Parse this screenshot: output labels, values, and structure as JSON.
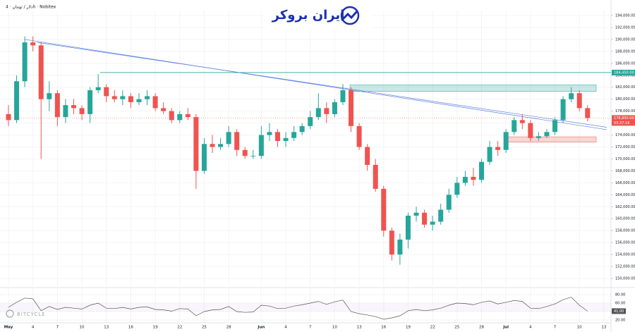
{
  "header": {
    "symbol": "دلار / تومان · 4h · Nobitex",
    "logo": "ایران بروکر",
    "watermark": "BITCYCLE"
  },
  "chart_data": [
    {
      "type": "candlestick",
      "categories": [
        "May",
        null,
        null,
        "4",
        null,
        null,
        "7",
        null,
        null,
        "10",
        null,
        null,
        "13",
        null,
        null,
        "16",
        null,
        null,
        "19",
        null,
        null,
        "22",
        null,
        null,
        "25",
        null,
        null,
        "28",
        null,
        null,
        null,
        "Jun",
        null,
        null,
        "4",
        null,
        null,
        "7",
        null,
        null,
        "10",
        null,
        null,
        "13",
        null,
        null,
        "16",
        null,
        null,
        "19",
        null,
        null,
        "22",
        null,
        null,
        "25",
        null,
        null,
        "28",
        null,
        null,
        "Jul",
        null,
        null,
        "4",
        null,
        null,
        "7",
        null,
        null,
        "10",
        null,
        null,
        "13"
      ],
      "open": [
        177500,
        176500,
        183000,
        189500,
        189000,
        180000,
        181000,
        177000,
        179000,
        178500,
        177500,
        181500,
        182000,
        180500,
        180000,
        180500,
        179500,
        180000,
        180500,
        178500,
        178000,
        176500,
        177500,
        177000,
        168000,
        172500,
        172000,
        172500,
        174500,
        171500,
        170500,
        170500,
        174000,
        174500,
        173000,
        173500,
        174500,
        175500,
        177000,
        178500,
        177500,
        179500,
        181500,
        175500,
        172000,
        169000,
        165000,
        158000,
        154000,
        156500,
        160500,
        161000,
        159000,
        159500,
        161500,
        164000,
        166000,
        167000,
        166500,
        169500,
        172000,
        171500,
        174500,
        176500,
        176000,
        173500,
        173800,
        174500,
        176500,
        180000,
        181000,
        178500,
        null,
        null
      ],
      "high": [
        179000,
        184000,
        190500,
        190500,
        189500,
        183000,
        181500,
        180000,
        180000,
        179000,
        182000,
        184200,
        182500,
        181500,
        181500,
        181000,
        181000,
        181500,
        181000,
        179500,
        178500,
        178000,
        178500,
        177500,
        173500,
        174000,
        173500,
        175500,
        175000,
        172000,
        171500,
        175500,
        176000,
        175000,
        174500,
        175500,
        176000,
        178000,
        181000,
        179500,
        180000,
        182500,
        182000,
        176000,
        172500,
        170000,
        165500,
        158500,
        157500,
        161000,
        162000,
        161500,
        160500,
        162500,
        165000,
        167000,
        168000,
        168500,
        170000,
        173000,
        173000,
        175000,
        177000,
        177500,
        176500,
        174500,
        175000,
        177000,
        180500,
        182000,
        181500,
        179000,
        null,
        null
      ],
      "low": [
        175500,
        176000,
        182000,
        188000,
        170000,
        178000,
        175500,
        176000,
        177500,
        176500,
        176000,
        181000,
        179500,
        179500,
        179000,
        178500,
        179000,
        179000,
        178000,
        177500,
        176000,
        176000,
        176500,
        165000,
        167500,
        171000,
        171500,
        172000,
        170500,
        170000,
        170000,
        170000,
        173000,
        172000,
        172000,
        173000,
        174000,
        175000,
        176500,
        176000,
        177000,
        179000,
        174500,
        171500,
        168000,
        164500,
        157000,
        153000,
        152300,
        155000,
        159500,
        158500,
        158000,
        159000,
        161000,
        163500,
        165500,
        165500,
        166000,
        169000,
        170500,
        171000,
        174000,
        175000,
        173000,
        173000,
        173500,
        174000,
        176000,
        179500,
        178000,
        176300,
        null,
        null
      ],
      "close": [
        176500,
        183000,
        189500,
        189000,
        180000,
        181000,
        177000,
        179000,
        178500,
        177500,
        181500,
        182000,
        180500,
        180000,
        180500,
        179500,
        180000,
        180500,
        178500,
        178000,
        176500,
        177500,
        177000,
        168000,
        172500,
        172000,
        172500,
        174500,
        171500,
        170500,
        170500,
        174000,
        174500,
        173000,
        173500,
        174500,
        175500,
        177000,
        178500,
        177500,
        179500,
        181500,
        175500,
        172000,
        169000,
        165000,
        158000,
        154000,
        156500,
        160500,
        161000,
        159000,
        159500,
        161500,
        164000,
        166000,
        167000,
        166500,
        169500,
        172000,
        171500,
        174500,
        176500,
        176000,
        173500,
        173800,
        174500,
        176500,
        180000,
        181000,
        178500,
        176850,
        null,
        null
      ],
      "up_color": "#26a69a",
      "down_color": "#ef5350",
      "ylim": [
        150000,
        194000
      ],
      "yticks": [
        {
          "value": 150000,
          "label": "150,000.00"
        },
        {
          "value": 152000,
          "label": "152,000.00"
        },
        {
          "value": 154000,
          "label": "154,000.00"
        },
        {
          "value": 156000,
          "label": "156,000.00"
        },
        {
          "value": 158000,
          "label": "158,000.00"
        },
        {
          "value": 160000,
          "label": "160,000.00"
        },
        {
          "value": 162000,
          "label": "162,000.00"
        },
        {
          "value": 164000,
          "label": "164,000.00"
        },
        {
          "value": 166000,
          "label": "166,000.00"
        },
        {
          "value": 168000,
          "label": "168,000.00"
        },
        {
          "value": 170000,
          "label": "170,000.00"
        },
        {
          "value": 172000,
          "label": "172,000.00"
        },
        {
          "value": 174000,
          "label": "174,000.00"
        },
        {
          "value": 176000,
          "label": "176,000.00"
        },
        {
          "value": 178000,
          "label": "178,000.00"
        },
        {
          "value": 180000,
          "label": "180,000.00"
        },
        {
          "value": 182000,
          "label": "182,000.00"
        },
        {
          "value": 184000,
          "label": "184,000.00"
        },
        {
          "value": 186000,
          "label": "186,000.00"
        },
        {
          "value": 188000,
          "label": "188,000.00"
        },
        {
          "value": 190000,
          "label": "190,000.00"
        },
        {
          "value": 192000,
          "label": "192,000.00"
        },
        {
          "value": 194000,
          "label": "194,000.00"
        }
      ],
      "level": {
        "value": 184450,
        "label": "184,450.00",
        "color": "#26a69a"
      },
      "last_price": {
        "value": 176850,
        "label": "176,850.00",
        "countdown": "03:37:16",
        "color": "#ef5350"
      },
      "zones": [
        {
          "from": 181300,
          "to": 182400,
          "color": "#26a69a"
        },
        {
          "from": 172800,
          "to": 173700,
          "color": "#ef5350"
        }
      ],
      "trendlines": [
        {
          "from": 190000,
          "to": 174900,
          "color": "#5b7fe0"
        },
        {
          "from": 189500,
          "to": 175300,
          "color": "#5b7fe0"
        }
      ]
    },
    {
      "type": "line",
      "name": "rsi",
      "color": "#555555",
      "values": [
        50,
        62,
        72,
        70,
        42,
        52,
        45,
        50,
        48,
        46,
        55,
        60,
        48,
        47,
        50,
        46,
        50,
        51,
        45,
        44,
        41,
        47,
        46,
        30,
        40,
        44,
        45,
        52,
        40,
        38,
        39,
        55,
        53,
        47,
        48,
        53,
        56,
        60,
        64,
        57,
        63,
        67,
        40,
        35,
        32,
        28,
        22,
        25,
        30,
        42,
        45,
        42,
        44,
        48,
        55,
        60,
        59,
        56,
        62,
        65,
        58,
        62,
        66,
        64,
        48,
        47,
        52,
        58,
        68,
        74,
        55,
        41,
        null,
        null
      ],
      "ylim": [
        20,
        80
      ],
      "yticks": [
        {
          "value": 20,
          "label": "20.00"
        },
        {
          "value": 40,
          "label": "40.00"
        },
        {
          "value": 60,
          "label": "60.00"
        },
        {
          "value": 80,
          "label": "80.00"
        }
      ],
      "last": {
        "value": 41,
        "label": "41.00"
      }
    }
  ]
}
